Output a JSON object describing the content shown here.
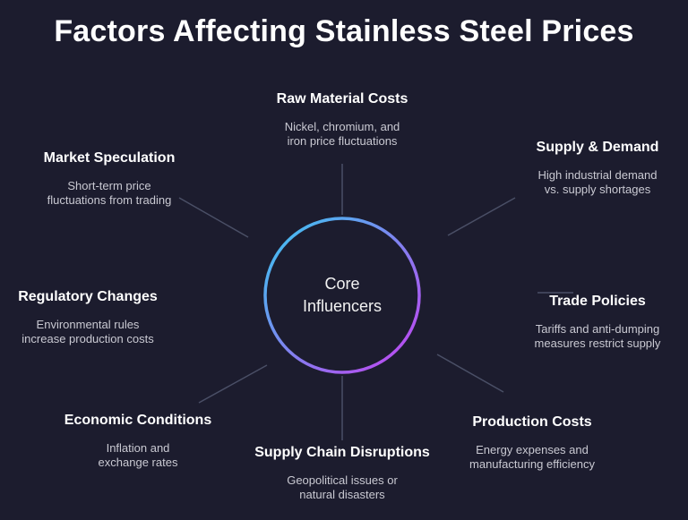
{
  "title": "Factors Affecting Stainless Steel Prices",
  "center": {
    "line1": "Core",
    "line2": "Influencers"
  },
  "colors": {
    "background": "#1c1c2e",
    "ring_start": "#38c8f0",
    "ring_end": "#c63ff0",
    "connector": "#4a4f66"
  },
  "factors": [
    {
      "name": "Raw Material Costs",
      "desc1": "Nickel, chromium, and",
      "desc2": "iron price fluctuations"
    },
    {
      "name": "Supply & Demand",
      "desc1": "High industrial demand",
      "desc2": "vs. supply shortages"
    },
    {
      "name": "Trade Policies",
      "desc1": "Tariffs and anti-dumping",
      "desc2": "measures restrict supply"
    },
    {
      "name": "Production Costs",
      "desc1": "Energy expenses and",
      "desc2": "manufacturing efficiency"
    },
    {
      "name": "Supply Chain Disruptions",
      "desc1": "Geopolitical issues or",
      "desc2": "natural disasters"
    },
    {
      "name": "Economic Conditions",
      "desc1": "Inflation and",
      "desc2": "exchange rates"
    },
    {
      "name": "Regulatory Changes",
      "desc1": "Environmental rules",
      "desc2": "increase production costs"
    },
    {
      "name": "Market Speculation",
      "desc1": "Short-term price",
      "desc2": "fluctuations from trading"
    }
  ]
}
